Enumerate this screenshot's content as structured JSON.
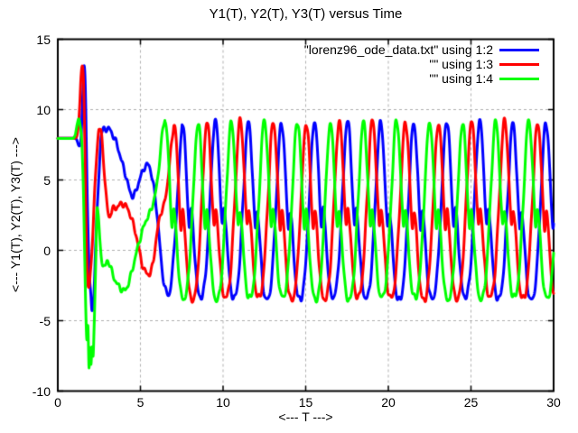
{
  "chart_data": {
    "type": "line",
    "title": "Y1(T), Y2(T), Y3(T) versus Time",
    "xlabel": "<--- T --->",
    "ylabel": "<--- Y1(T), Y2(T), Y3(T) --->",
    "xlim": [
      0,
      30
    ],
    "ylim": [
      -10,
      15
    ],
    "xticks": [
      0,
      5,
      10,
      15,
      20,
      25,
      30
    ],
    "yticks": [
      -10,
      -5,
      0,
      5,
      10,
      15
    ],
    "grid": true,
    "grid_color": "#b0b0b0",
    "border_color": "#000000",
    "background": "#ffffff",
    "legend_position": "top-right-inside",
    "line_width": 3,
    "series": [
      {
        "label": "\"lorenz96_ode_data.txt\" using 1:2",
        "variable": "Y1",
        "color": "#0000ff",
        "first_peak_t": 7.52,
        "phase": 0.0,
        "transient_keypoints": [
          [
            0,
            7.97
          ],
          [
            0.9,
            7.97
          ],
          [
            1.12,
            7.9
          ],
          [
            1.3,
            7.4
          ],
          [
            1.42,
            8.2
          ],
          [
            1.5,
            10.8
          ],
          [
            1.58,
            12.9
          ],
          [
            1.66,
            11.5
          ],
          [
            1.78,
            4.0
          ],
          [
            1.9,
            -1.5
          ],
          [
            2.0,
            -3.3
          ],
          [
            2.07,
            -4.5
          ],
          [
            2.15,
            -3.9
          ],
          [
            2.3,
            0.5
          ],
          [
            2.5,
            5.5
          ],
          [
            2.65,
            8.3
          ],
          [
            2.85,
            8.5
          ],
          [
            3.05,
            8.6
          ],
          [
            3.3,
            8.2
          ],
          [
            3.55,
            7.6
          ],
          [
            3.8,
            6.6
          ],
          [
            4.1,
            5.4
          ],
          [
            4.35,
            4.3
          ],
          [
            4.55,
            3.9
          ],
          [
            4.75,
            4.4
          ],
          [
            5.0,
            5.3
          ],
          [
            5.25,
            6.0
          ],
          [
            5.48,
            6.2
          ],
          [
            5.7,
            5.3
          ],
          [
            5.9,
            3.8
          ],
          [
            6.1,
            1.5
          ],
          [
            6.3,
            -1.2
          ],
          [
            6.5,
            -2.6
          ],
          [
            6.7,
            -3.1
          ],
          [
            6.9,
            -1.8
          ],
          [
            7.1,
            1.2
          ],
          [
            7.3,
            5.0
          ],
          [
            7.45,
            7.9
          ],
          [
            7.52,
            9.1
          ]
        ]
      },
      {
        "label": "\"\" using 1:3",
        "variable": "Y2",
        "color": "#ff0000",
        "first_peak_t": 7.02,
        "phase": 2.1,
        "transient_keypoints": [
          [
            0,
            7.96
          ],
          [
            0.92,
            7.96
          ],
          [
            1.1,
            8.0
          ],
          [
            1.22,
            8.6
          ],
          [
            1.32,
            10.2
          ],
          [
            1.4,
            12.3
          ],
          [
            1.47,
            13.0
          ],
          [
            1.56,
            11.8
          ],
          [
            1.64,
            7.5
          ],
          [
            1.72,
            1.5
          ],
          [
            1.8,
            -2.2
          ],
          [
            1.88,
            -2.7
          ],
          [
            1.98,
            -1.5
          ],
          [
            2.1,
            0.8
          ],
          [
            2.25,
            4.5
          ],
          [
            2.4,
            7.5
          ],
          [
            2.5,
            8.6
          ],
          [
            2.62,
            8.3
          ],
          [
            2.75,
            6.5
          ],
          [
            2.9,
            4.2
          ],
          [
            3.02,
            2.7
          ],
          [
            3.12,
            2.2
          ],
          [
            3.22,
            2.6
          ],
          [
            3.32,
            2.9
          ],
          [
            3.45,
            2.8
          ],
          [
            3.6,
            3.0
          ],
          [
            3.8,
            3.15
          ],
          [
            4.0,
            3.15
          ],
          [
            4.2,
            2.9
          ],
          [
            4.45,
            2.2
          ],
          [
            4.7,
            1.2
          ],
          [
            4.95,
            -0.2
          ],
          [
            5.15,
            -1.2
          ],
          [
            5.35,
            -1.6
          ],
          [
            5.55,
            -1.7
          ],
          [
            5.75,
            -0.9
          ],
          [
            6.0,
            1.2
          ],
          [
            6.2,
            2.6
          ],
          [
            6.4,
            3.2
          ],
          [
            6.6,
            4.5
          ],
          [
            6.85,
            7.3
          ],
          [
            7.02,
            9.1
          ]
        ]
      },
      {
        "label": "\"\" using 1:4",
        "variable": "Y3",
        "color": "#00ff00",
        "first_peak_t": 6.48,
        "phase": 4.2,
        "transient_keypoints": [
          [
            0,
            7.95
          ],
          [
            0.88,
            7.95
          ],
          [
            1.05,
            8.2
          ],
          [
            1.18,
            9.0
          ],
          [
            1.27,
            9.35
          ],
          [
            1.36,
            8.8
          ],
          [
            1.45,
            7.8
          ],
          [
            1.55,
            4.5
          ],
          [
            1.63,
            -0.5
          ],
          [
            1.7,
            -4.5
          ],
          [
            1.76,
            -6.3
          ],
          [
            1.82,
            -5.3
          ],
          [
            1.89,
            -8.2
          ],
          [
            1.95,
            -6.6
          ],
          [
            2.01,
            -7.9
          ],
          [
            2.07,
            -6.9
          ],
          [
            2.13,
            -7.6
          ],
          [
            2.2,
            -5.2
          ],
          [
            2.3,
            -0.5
          ],
          [
            2.38,
            3.2
          ],
          [
            2.45,
            2.6
          ],
          [
            2.55,
            0.6
          ],
          [
            2.7,
            -0.8
          ],
          [
            2.85,
            -1.1
          ],
          [
            3.0,
            -0.7
          ],
          [
            3.15,
            -1.0
          ],
          [
            3.35,
            -1.8
          ],
          [
            3.6,
            -2.4
          ],
          [
            3.85,
            -2.8
          ],
          [
            4.05,
            -2.9
          ],
          [
            4.25,
            -2.5
          ],
          [
            4.5,
            -1.5
          ],
          [
            4.75,
            -0.3
          ],
          [
            5.0,
            0.8
          ],
          [
            5.3,
            1.9
          ],
          [
            5.55,
            2.5
          ],
          [
            5.8,
            3.4
          ],
          [
            6.0,
            4.6
          ],
          [
            6.2,
            6.8
          ],
          [
            6.35,
            8.5
          ],
          [
            6.48,
            9.2
          ]
        ]
      }
    ],
    "steady_wave": {
      "period": 2.0,
      "keypoints": [
        [
          0,
          9.1
        ],
        [
          0.12,
          8.35
        ],
        [
          0.25,
          5.6
        ],
        [
          0.36,
          2.9
        ],
        [
          0.44,
          1.65
        ],
        [
          0.54,
          2.85
        ],
        [
          0.64,
          1.9
        ],
        [
          0.78,
          -0.6
        ],
        [
          0.92,
          -2.6
        ],
        [
          1.06,
          -3.35
        ],
        [
          1.18,
          -3.4
        ],
        [
          1.32,
          -2.8
        ],
        [
          1.47,
          -1.1
        ],
        [
          1.62,
          2.0
        ],
        [
          1.77,
          5.3
        ],
        [
          1.89,
          8.05
        ]
      ]
    },
    "jitter": {
      "amp1": 0.13,
      "freq1": 16.5,
      "amp2": 0.08,
      "freq2": 27.1,
      "amp3": 0.12,
      "freq3": 0.83,
      "ramp_start": 1.25,
      "ramp_len": 0.3
    }
  }
}
